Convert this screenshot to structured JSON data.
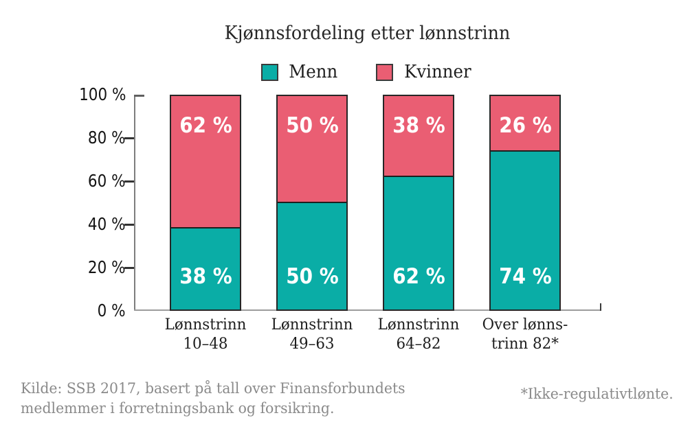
{
  "title": "Kjønnsfordeling etter lønnstrinn",
  "legend": [
    {
      "label": "Menn",
      "color": "#0AADA6"
    },
    {
      "label": "Kvinner",
      "color": "#EA5E73"
    }
  ],
  "footer": {
    "source_lines": [
      "Kilde: SSB 2017, basert på tall over Finansforbundets",
      "medlemmer i forretningsbank og forsikring."
    ],
    "note": "*Ikke-regulativtlønte."
  },
  "chart_data": {
    "type": "bar",
    "stacked": true,
    "title": "Kjønnsfordeling etter lønnstrinn",
    "categories": [
      "Lønnstrinn 10–48",
      "Lønnstrinn 49–63",
      "Lønnstrinn 64–82",
      "Over lønnstrinn 82*"
    ],
    "category_lines": [
      [
        "Lønnstrinn",
        "10–48"
      ],
      [
        "Lønnstrinn",
        "49–63"
      ],
      [
        "Lønnstrinn",
        "64–82"
      ],
      [
        "Over lønns-",
        "trinn 82*"
      ]
    ],
    "series": [
      {
        "name": "Menn",
        "color": "#0AADA6",
        "values": [
          38,
          50,
          62,
          74
        ]
      },
      {
        "name": "Kvinner",
        "color": "#EA5E73",
        "values": [
          62,
          50,
          38,
          26
        ]
      }
    ],
    "value_suffix": " %",
    "xlabel": "",
    "ylabel": "",
    "ylim": [
      0,
      100
    ],
    "yticks": [
      {
        "value": 0,
        "label": "0 %"
      },
      {
        "value": 20,
        "label": "20 %"
      },
      {
        "value": 40,
        "label": "40 %"
      },
      {
        "value": 60,
        "label": "60 %"
      },
      {
        "value": 80,
        "label": "80 %"
      },
      {
        "value": 100,
        "label": "100 %"
      }
    ],
    "grid": false,
    "legend_position": "top"
  }
}
